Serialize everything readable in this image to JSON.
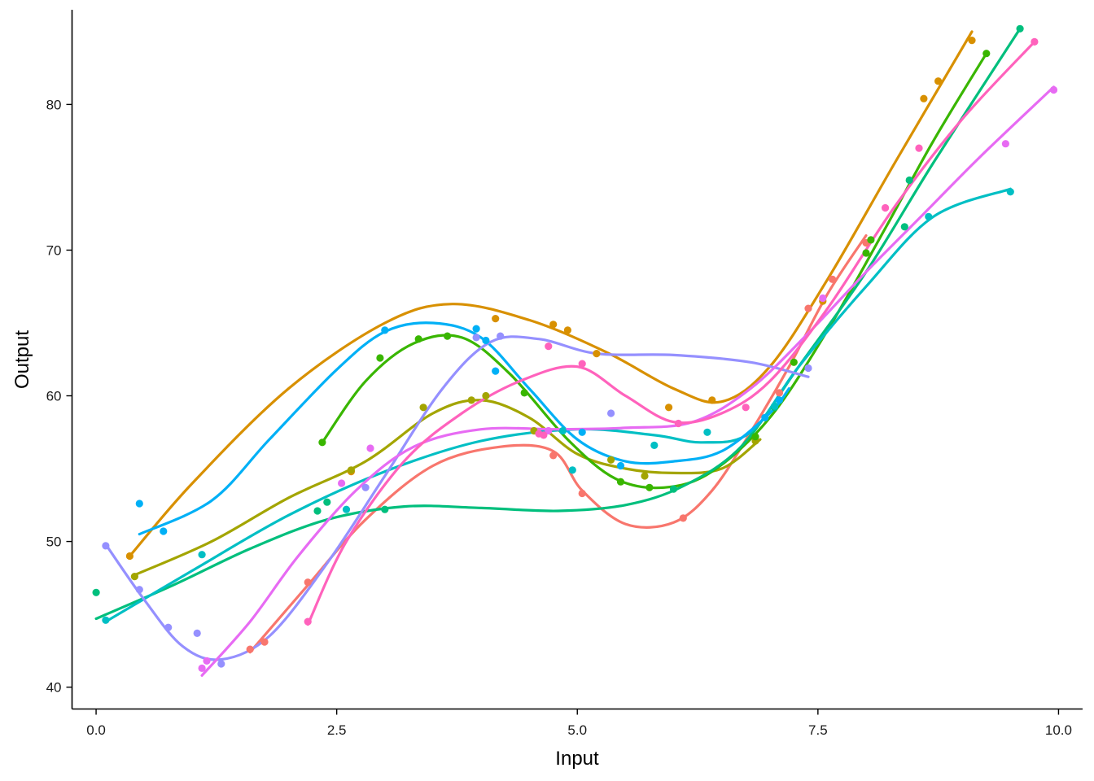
{
  "chart_data": {
    "type": "scatter",
    "xlabel": "Input",
    "ylabel": "Output",
    "xlim": [
      -0.25,
      10.25
    ],
    "ylim": [
      38.5,
      86.5
    ],
    "x_ticks": [
      0.0,
      2.5,
      5.0,
      7.5,
      10.0
    ],
    "x_tick_labels": [
      "0.0",
      "2.5",
      "5.0",
      "7.5",
      "10.0"
    ],
    "y_ticks": [
      40,
      50,
      60,
      70,
      80
    ],
    "y_tick_labels": [
      "40",
      "50",
      "60",
      "70",
      "80"
    ],
    "grid": false,
    "legend": "none",
    "series": [
      {
        "color": "#F8766D",
        "points": [
          [
            1.6,
            42.6
          ],
          [
            1.75,
            43.1
          ],
          [
            2.2,
            47.2
          ],
          [
            4.75,
            55.9
          ],
          [
            5.05,
            53.3
          ],
          [
            6.1,
            51.6
          ],
          [
            7.1,
            60.2
          ],
          [
            7.4,
            66.0
          ],
          [
            7.65,
            68.0
          ],
          [
            8.0,
            70.5
          ]
        ],
        "curve": [
          [
            1.6,
            42.4
          ],
          [
            2.2,
            47.0
          ],
          [
            2.8,
            51.5
          ],
          [
            3.5,
            55.2
          ],
          [
            4.2,
            56.5
          ],
          [
            4.75,
            56.2
          ],
          [
            5.05,
            53.5
          ],
          [
            5.5,
            51.2
          ],
          [
            6.0,
            51.3
          ],
          [
            6.4,
            53.5
          ],
          [
            6.8,
            57.5
          ],
          [
            7.2,
            62.0
          ],
          [
            7.6,
            67.0
          ],
          [
            8.0,
            71.0
          ]
        ]
      },
      {
        "color": "#D89000",
        "points": [
          [
            0.35,
            49.0
          ],
          [
            2.65,
            54.8
          ],
          [
            4.15,
            65.3
          ],
          [
            4.75,
            64.9
          ],
          [
            4.9,
            64.5
          ],
          [
            5.2,
            62.9
          ],
          [
            5.95,
            59.2
          ],
          [
            6.4,
            59.7
          ],
          [
            7.55,
            66.5
          ],
          [
            8.6,
            80.4
          ],
          [
            8.75,
            81.6
          ],
          [
            9.1,
            84.4
          ]
        ],
        "curve": [
          [
            0.35,
            49.0
          ],
          [
            1.0,
            54.0
          ],
          [
            2.0,
            60.5
          ],
          [
            3.0,
            65.0
          ],
          [
            3.7,
            66.3
          ],
          [
            4.5,
            65.2
          ],
          [
            5.3,
            63.0
          ],
          [
            6.0,
            60.5
          ],
          [
            6.5,
            59.6
          ],
          [
            7.0,
            62.0
          ],
          [
            7.6,
            68.0
          ],
          [
            8.3,
            76.0
          ],
          [
            9.1,
            85.0
          ]
        ]
      },
      {
        "color": "#A3A500",
        "points": [
          [
            0.4,
            47.6
          ],
          [
            2.65,
            54.9
          ],
          [
            3.4,
            59.2
          ],
          [
            3.9,
            59.7
          ],
          [
            4.05,
            60.0
          ],
          [
            4.55,
            57.6
          ],
          [
            5.35,
            55.6
          ],
          [
            5.7,
            54.5
          ],
          [
            6.85,
            56.9
          ]
        ],
        "curve": [
          [
            0.4,
            47.7
          ],
          [
            1.2,
            50.0
          ],
          [
            2.0,
            53.0
          ],
          [
            2.8,
            55.5
          ],
          [
            3.5,
            58.8
          ],
          [
            4.0,
            59.7
          ],
          [
            4.5,
            58.5
          ],
          [
            5.0,
            56.0
          ],
          [
            5.5,
            55.0
          ],
          [
            6.0,
            54.7
          ],
          [
            6.5,
            55.0
          ],
          [
            6.9,
            57.0
          ]
        ]
      },
      {
        "color": "#39B600",
        "points": [
          [
            2.35,
            56.8
          ],
          [
            2.95,
            62.6
          ],
          [
            3.35,
            63.9
          ],
          [
            3.65,
            64.1
          ],
          [
            4.45,
            60.2
          ],
          [
            5.45,
            54.1
          ],
          [
            5.75,
            53.7
          ],
          [
            6.85,
            57.2
          ],
          [
            7.25,
            62.3
          ],
          [
            8.0,
            69.8
          ],
          [
            8.05,
            70.7
          ],
          [
            9.25,
            83.5
          ]
        ],
        "curve": [
          [
            2.35,
            56.8
          ],
          [
            2.8,
            61.0
          ],
          [
            3.3,
            63.6
          ],
          [
            3.8,
            64.0
          ],
          [
            4.3,
            61.5
          ],
          [
            4.9,
            57.0
          ],
          [
            5.4,
            54.3
          ],
          [
            5.9,
            53.7
          ],
          [
            6.4,
            54.8
          ],
          [
            7.0,
            58.5
          ],
          [
            7.6,
            64.5
          ],
          [
            8.2,
            71.5
          ],
          [
            8.7,
            77.5
          ],
          [
            9.25,
            83.5
          ]
        ]
      },
      {
        "color": "#00BF7D",
        "points": [
          [
            0.0,
            46.5
          ],
          [
            2.3,
            52.1
          ],
          [
            2.4,
            52.7
          ],
          [
            3.0,
            52.2
          ],
          [
            6.0,
            53.6
          ],
          [
            7.05,
            59.2
          ],
          [
            8.4,
            71.6
          ],
          [
            8.45,
            74.8
          ],
          [
            9.6,
            85.2
          ]
        ],
        "curve": [
          [
            0.0,
            44.7
          ],
          [
            0.8,
            47.0
          ],
          [
            1.6,
            49.5
          ],
          [
            2.4,
            51.5
          ],
          [
            3.2,
            52.4
          ],
          [
            4.0,
            52.3
          ],
          [
            4.8,
            52.1
          ],
          [
            5.5,
            52.5
          ],
          [
            6.1,
            53.8
          ],
          [
            6.7,
            56.5
          ],
          [
            7.3,
            62.0
          ],
          [
            8.0,
            68.5
          ],
          [
            8.7,
            76.0
          ],
          [
            9.6,
            85.2
          ]
        ]
      },
      {
        "color": "#00BFC4",
        "points": [
          [
            0.1,
            44.6
          ],
          [
            1.1,
            49.1
          ],
          [
            2.6,
            52.2
          ],
          [
            4.85,
            57.6
          ],
          [
            4.95,
            54.9
          ],
          [
            5.8,
            56.6
          ],
          [
            6.35,
            57.5
          ],
          [
            7.05,
            59.3
          ],
          [
            8.65,
            72.3
          ],
          [
            9.5,
            74.0
          ]
        ],
        "curve": [
          [
            0.1,
            44.5
          ],
          [
            1.0,
            48.0
          ],
          [
            2.0,
            51.8
          ],
          [
            3.0,
            54.8
          ],
          [
            4.0,
            56.9
          ],
          [
            5.0,
            57.7
          ],
          [
            5.8,
            57.3
          ],
          [
            6.3,
            56.8
          ],
          [
            6.8,
            57.5
          ],
          [
            7.3,
            62.0
          ],
          [
            8.0,
            67.5
          ],
          [
            8.7,
            72.3
          ],
          [
            9.5,
            74.2
          ]
        ]
      },
      {
        "color": "#00B0F6",
        "points": [
          [
            0.45,
            52.6
          ],
          [
            0.7,
            50.7
          ],
          [
            3.0,
            64.5
          ],
          [
            3.95,
            64.6
          ],
          [
            4.05,
            63.8
          ],
          [
            4.15,
            61.7
          ],
          [
            5.05,
            57.5
          ],
          [
            5.45,
            55.2
          ],
          [
            6.95,
            58.5
          ],
          [
            7.1,
            59.7
          ]
        ],
        "curve": [
          [
            0.45,
            50.5
          ],
          [
            1.2,
            52.8
          ],
          [
            1.8,
            57.0
          ],
          [
            2.5,
            61.8
          ],
          [
            3.0,
            64.4
          ],
          [
            3.5,
            65.0
          ],
          [
            4.0,
            64.0
          ],
          [
            4.5,
            60.5
          ],
          [
            5.0,
            57.0
          ],
          [
            5.5,
            55.5
          ],
          [
            6.0,
            55.5
          ],
          [
            6.5,
            56.2
          ],
          [
            7.0,
            58.8
          ],
          [
            7.2,
            60.5
          ]
        ]
      },
      {
        "color": "#9590FF",
        "points": [
          [
            0.1,
            49.7
          ],
          [
            0.45,
            46.7
          ],
          [
            0.75,
            44.1
          ],
          [
            1.05,
            43.7
          ],
          [
            1.3,
            41.6
          ],
          [
            2.8,
            53.7
          ],
          [
            3.95,
            64.0
          ],
          [
            4.2,
            64.1
          ],
          [
            5.35,
            58.8
          ],
          [
            7.4,
            61.9
          ]
        ],
        "curve": [
          [
            0.1,
            49.8
          ],
          [
            0.5,
            46.0
          ],
          [
            0.9,
            42.8
          ],
          [
            1.3,
            41.9
          ],
          [
            1.8,
            43.5
          ],
          [
            2.4,
            48.5
          ],
          [
            3.0,
            54.5
          ],
          [
            3.6,
            60.5
          ],
          [
            4.1,
            63.7
          ],
          [
            4.6,
            63.9
          ],
          [
            5.2,
            62.9
          ],
          [
            6.0,
            62.8
          ],
          [
            6.8,
            62.3
          ],
          [
            7.4,
            61.3
          ]
        ]
      },
      {
        "color": "#E76BF3",
        "points": [
          [
            1.1,
            41.3
          ],
          [
            1.15,
            41.8
          ],
          [
            2.55,
            54.0
          ],
          [
            2.85,
            56.4
          ],
          [
            4.7,
            57.6
          ],
          [
            7.55,
            66.7
          ],
          [
            9.45,
            77.3
          ],
          [
            9.95,
            81.0
          ]
        ],
        "curve": [
          [
            1.1,
            40.8
          ],
          [
            1.6,
            44.5
          ],
          [
            2.1,
            49.0
          ],
          [
            2.7,
            53.5
          ],
          [
            3.3,
            56.5
          ],
          [
            4.0,
            57.7
          ],
          [
            4.8,
            57.7
          ],
          [
            5.5,
            57.8
          ],
          [
            6.2,
            58.2
          ],
          [
            6.8,
            60.5
          ],
          [
            7.4,
            64.3
          ],
          [
            8.0,
            68.5
          ],
          [
            8.6,
            72.5
          ],
          [
            9.2,
            76.5
          ],
          [
            9.95,
            81.2
          ]
        ]
      },
      {
        "color": "#FF62BC",
        "points": [
          [
            2.2,
            44.5
          ],
          [
            4.6,
            57.4
          ],
          [
            4.65,
            57.3
          ],
          [
            4.7,
            63.4
          ],
          [
            5.05,
            62.2
          ],
          [
            6.05,
            58.1
          ],
          [
            6.75,
            59.2
          ],
          [
            8.2,
            72.9
          ],
          [
            8.55,
            77.0
          ],
          [
            9.75,
            84.3
          ]
        ],
        "curve": [
          [
            2.2,
            44.3
          ],
          [
            2.6,
            50.0
          ],
          [
            3.2,
            55.5
          ],
          [
            3.8,
            58.8
          ],
          [
            4.4,
            61.0
          ],
          [
            5.0,
            62.0
          ],
          [
            5.5,
            60.0
          ],
          [
            6.0,
            58.2
          ],
          [
            6.5,
            58.8
          ],
          [
            7.0,
            61.0
          ],
          [
            7.6,
            66.0
          ],
          [
            8.3,
            73.0
          ],
          [
            9.0,
            79.0
          ],
          [
            9.75,
            84.3
          ]
        ]
      }
    ]
  }
}
